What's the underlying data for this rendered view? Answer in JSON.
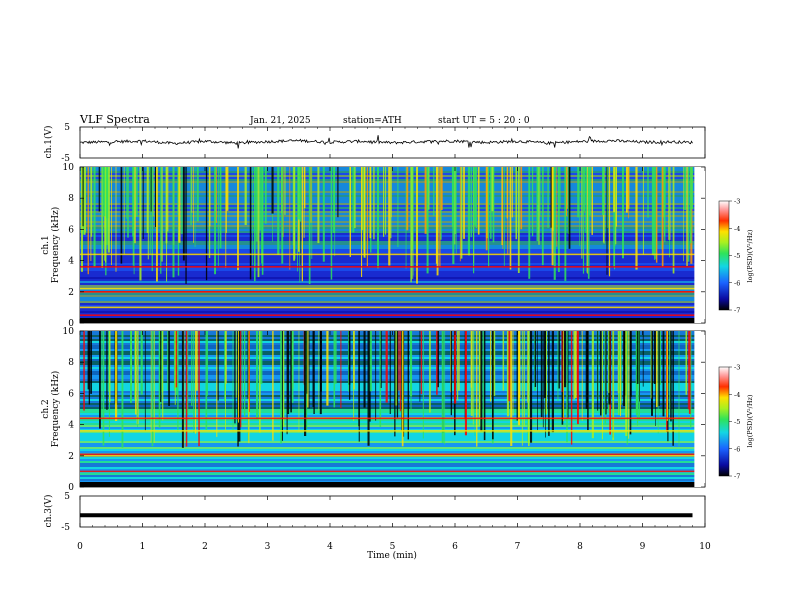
{
  "header": {
    "title": "VLF  Spectra",
    "date": "Jan. 21, 2025",
    "station": "station=ATH",
    "start": "start  UT  =   5 : 20 : 0"
  },
  "chart_data": [
    {
      "type": "line",
      "panel": "ch1-waveform",
      "ylabel": "ch.1(V)",
      "ylim": [
        -5,
        5
      ],
      "yticks": [
        "5",
        "-5"
      ],
      "x": [
        0,
        0.5,
        1,
        1.5,
        2,
        2.5,
        3,
        3.5,
        4,
        4.5,
        5,
        5.5,
        6,
        6.5,
        7,
        7.5,
        8,
        8.5,
        9,
        9.5,
        9.8
      ],
      "values": [
        0,
        0.2,
        0.5,
        -0.3,
        0.4,
        -0.2,
        0.3,
        0.6,
        0.1,
        0.4,
        -0.1,
        0.3,
        0.5,
        0.0,
        0.4,
        -0.2,
        0.3,
        0.6,
        0.1,
        0.2,
        0.0
      ],
      "color": "#000000"
    },
    {
      "type": "heatmap",
      "panel": "ch1-spectrogram",
      "ylabel": "ch.1\nFrequency (kHz)",
      "ylim": [
        0,
        10
      ],
      "yticks": [
        "0",
        "2",
        "4",
        "6",
        "8",
        "10"
      ],
      "colorbar": {
        "label": "log(PSD)(V²/Hz)",
        "ticks": [
          "-3",
          "-4",
          "-5",
          "-6",
          "-7"
        ],
        "range": [
          -7,
          -3
        ]
      },
      "bands_khz": [
        0.5,
        1.0,
        2.0,
        2.2,
        3.6,
        4.4
      ],
      "background": "#1a2bd0"
    },
    {
      "type": "heatmap",
      "panel": "ch2-spectrogram",
      "ylabel": "ch.2\nFrequency (kHz)",
      "ylim": [
        0,
        10
      ],
      "yticks": [
        "0",
        "2",
        "4",
        "6",
        "8",
        "10"
      ],
      "colorbar": {
        "label": "log(PSD)(V²/Hz)",
        "ticks": [
          "-3",
          "-4",
          "-5",
          "-6",
          "-7"
        ],
        "range": [
          -7,
          -3
        ]
      },
      "bands_khz": [
        1.0,
        2.0,
        2.1,
        3.6,
        4.4
      ],
      "background": "#13d6e3"
    },
    {
      "type": "line",
      "panel": "ch3-waveform",
      "ylabel": "ch.3(V)",
      "ylim": [
        -5,
        5
      ],
      "yticks": [
        "5",
        "-5"
      ],
      "x": [
        0,
        9.8
      ],
      "values": [
        -1.2,
        -1.2
      ],
      "color": "#000000"
    }
  ],
  "xaxis": {
    "label": "Time  (min)",
    "range": [
      0,
      10
    ],
    "ticks": [
      "0",
      "1",
      "2",
      "3",
      "4",
      "5",
      "6",
      "7",
      "8",
      "9",
      "10"
    ]
  },
  "colors": {
    "colormap": [
      "#000000",
      "#0a0aa0",
      "#1a2bd0",
      "#1a63ff",
      "#13d6e3",
      "#2fe35a",
      "#a8f020",
      "#ffe000",
      "#ff9a00",
      "#ff0000",
      "#ffffff"
    ]
  }
}
